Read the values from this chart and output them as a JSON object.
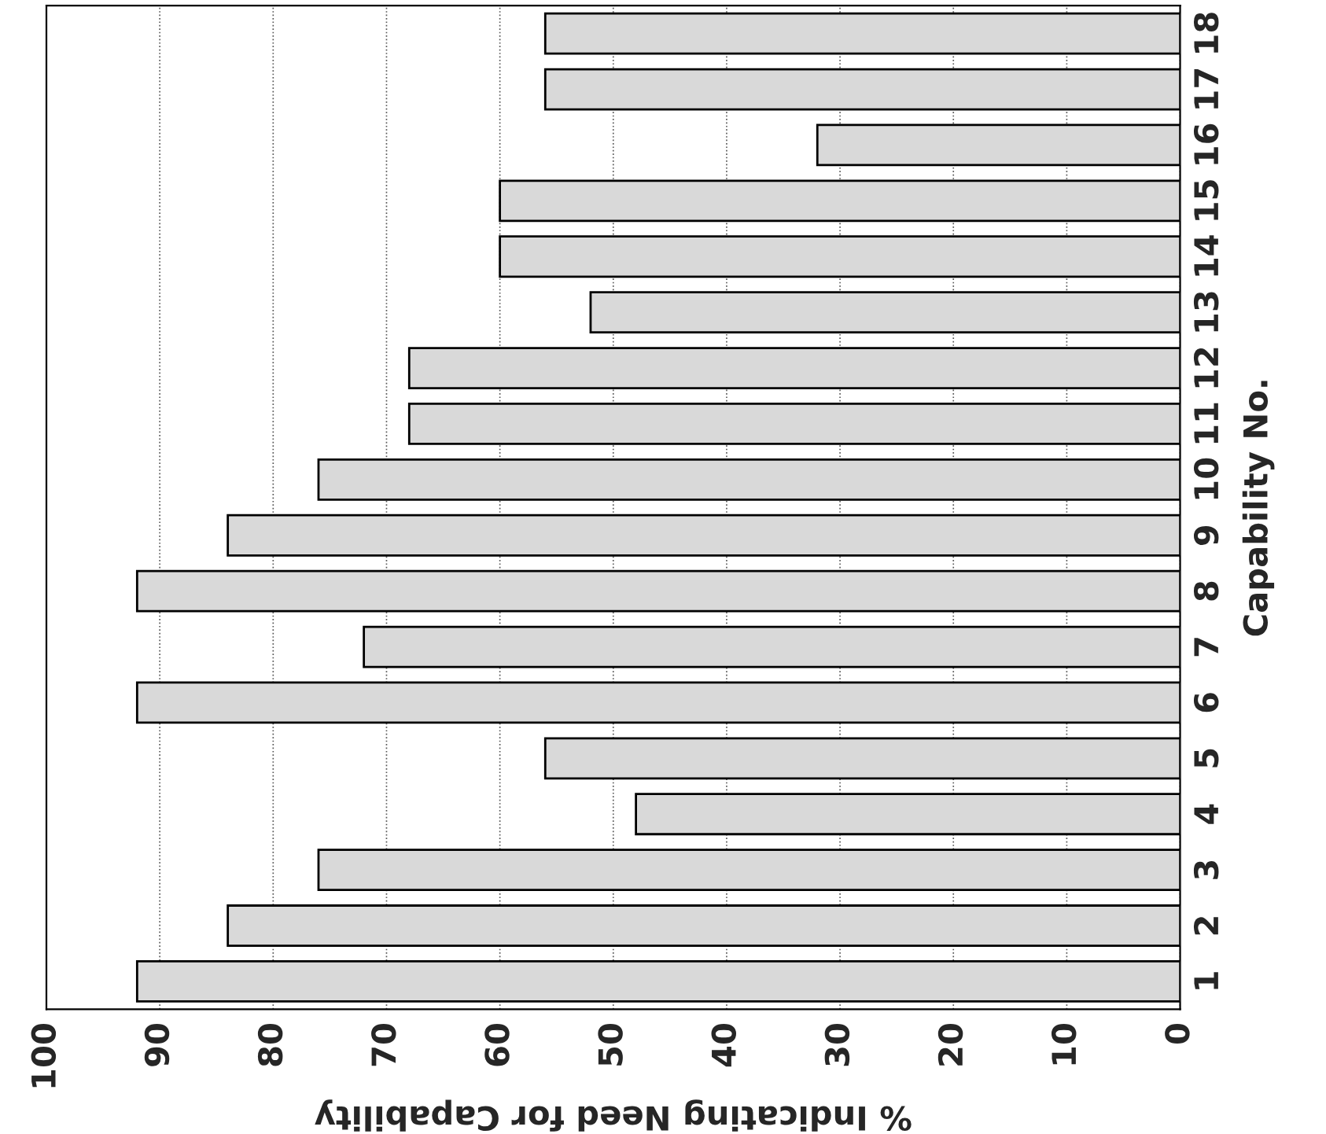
{
  "chart_data": {
    "type": "bar",
    "orientation": "horizontal",
    "xlabel": "% Indicating Need for Capability",
    "ylabel": "Capability No.",
    "categories": [
      "18",
      "17",
      "16",
      "15",
      "14",
      "13",
      "12",
      "11",
      "10",
      "9",
      "8",
      "7",
      "6",
      "5",
      "4",
      "3",
      "2",
      "1"
    ],
    "values": [
      56,
      56,
      32,
      60,
      60,
      52,
      68,
      68,
      76,
      84,
      92,
      72,
      92,
      56,
      48,
      76,
      84,
      92
    ],
    "color": "#d9d9d9",
    "xlim": [
      100,
      0
    ],
    "xticks": [
      0,
      10,
      20,
      30,
      40,
      50,
      60,
      70,
      80,
      90,
      100
    ],
    "grid": "x"
  }
}
